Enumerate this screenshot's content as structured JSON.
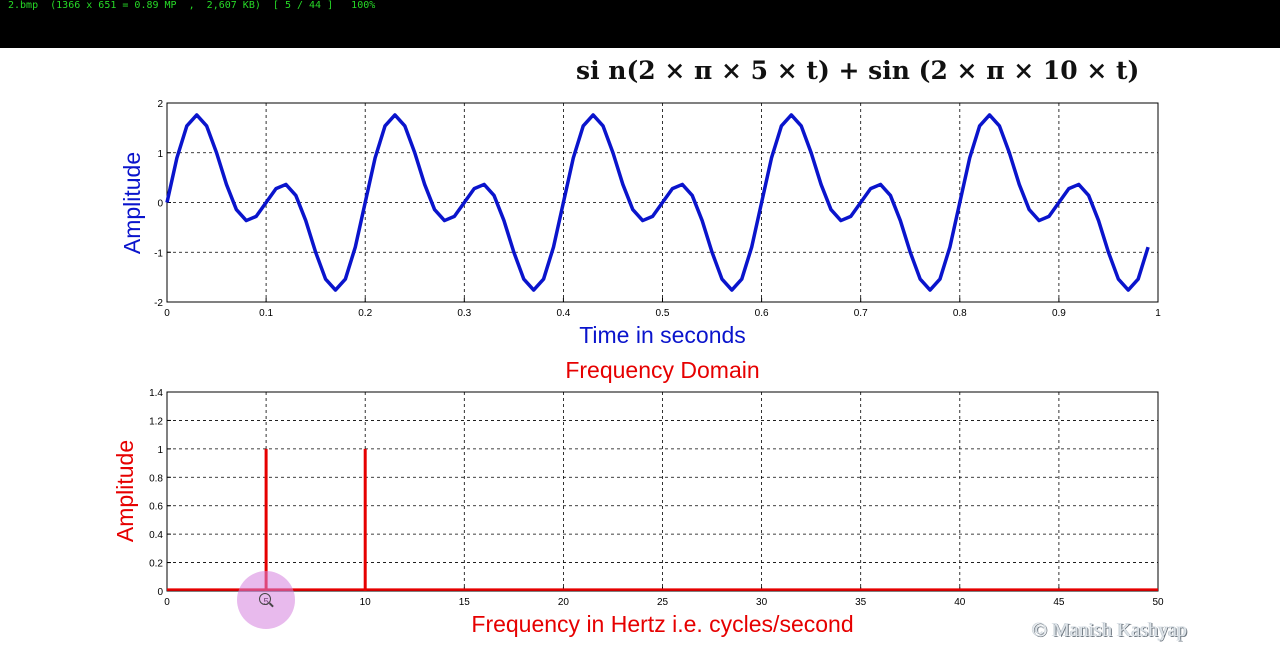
{
  "viewer": {
    "status_text": "2.bmp  (1366 x 651 = 0.89 MP  ,  2,607 KB)  [ 5 / 44 ]   100%"
  },
  "formula": "si n(2 × π × 5 × t) + sin (2 × π × 10 × t)",
  "watermark": "© Manish Kashyap",
  "colors": {
    "time_series": "#0a14cc",
    "freq_series": "#e60000",
    "grid": "#000000"
  },
  "chart_data": [
    {
      "type": "line",
      "title": "",
      "xlabel": "Time in seconds",
      "ylabel": "Amplitude",
      "xlim": [
        0,
        1
      ],
      "ylim": [
        -2,
        2
      ],
      "x_ticks": [
        "0",
        "0.1",
        "0.2",
        "0.3",
        "0.4",
        "0.5",
        "0.6",
        "0.7",
        "0.8",
        "0.9",
        "1"
      ],
      "y_ticks": [
        "-2",
        "-1",
        "0",
        "1",
        "2"
      ],
      "grid": true,
      "series": [
        {
          "expression": "sin(2*pi*5*t) + sin(2*pi*10*t)",
          "x_start": 0,
          "x_end": 0.99,
          "x_step": 0.01
        }
      ]
    },
    {
      "type": "line",
      "title": "Frequency Domain",
      "xlabel": "Frequency in Hertz i.e. cycles/second",
      "ylabel": "Amplitude",
      "xlim": [
        0,
        50
      ],
      "ylim": [
        0,
        1.4
      ],
      "x_ticks": [
        "0",
        "5",
        "10",
        "15",
        "20",
        "25",
        "30",
        "35",
        "40",
        "45",
        "50"
      ],
      "y_ticks": [
        "0",
        "0.2",
        "0.4",
        "0.6",
        "0.8",
        "1",
        "1.2",
        "1.4"
      ],
      "grid": true,
      "peaks": [
        {
          "x": 5,
          "y": 1
        },
        {
          "x": 10,
          "y": 1
        }
      ],
      "baseline": 0.01
    }
  ]
}
